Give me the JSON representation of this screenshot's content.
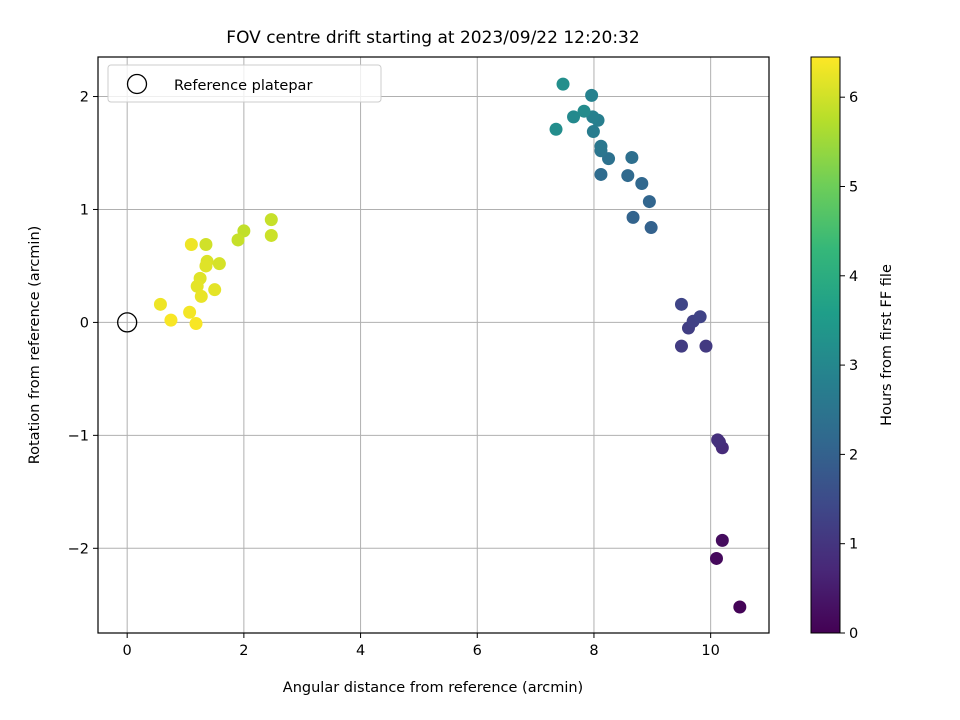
{
  "chart_data": {
    "type": "scatter",
    "title": "FOV centre drift starting at 2023/09/22 12:20:32",
    "xlabel": "Angular distance from reference (arcmin)",
    "ylabel": "Rotation from reference (arcmin)",
    "xlim": [
      -0.5,
      11.0
    ],
    "ylim": [
      -2.75,
      2.35
    ],
    "xticks": [
      0,
      2,
      4,
      6,
      8,
      10
    ],
    "yticks": [
      -2,
      -1,
      0,
      1,
      2
    ],
    "xtick_labels": [
      "0",
      "2",
      "4",
      "6",
      "8",
      "10"
    ],
    "ytick_labels": [
      "−2",
      "−1",
      "0",
      "1",
      "2"
    ],
    "grid": true,
    "legend": {
      "location": "upper-left",
      "entries": [
        "Reference platepar"
      ]
    },
    "reference_point": {
      "x": 0,
      "y": 0
    },
    "colorbar": {
      "label": "Hours from first FF file",
      "min": 0,
      "max": 6.45,
      "ticks": [
        0,
        1,
        2,
        3,
        4,
        5,
        6
      ],
      "tick_labels": [
        "0",
        "1",
        "2",
        "3",
        "4",
        "5",
        "6"
      ],
      "colormap": "viridis"
    },
    "points": [
      {
        "x": 10.5,
        "y": -2.52,
        "hours": 0.05
      },
      {
        "x": 10.1,
        "y": -2.09,
        "hours": 0.15
      },
      {
        "x": 10.2,
        "y": -1.93,
        "hours": 0.2
      },
      {
        "x": 10.2,
        "y": -1.11,
        "hours": 0.8
      },
      {
        "x": 10.15,
        "y": -1.06,
        "hours": 0.85
      },
      {
        "x": 10.12,
        "y": -1.04,
        "hours": 0.9
      },
      {
        "x": 9.92,
        "y": -0.21,
        "hours": 1.1
      },
      {
        "x": 9.5,
        "y": -0.21,
        "hours": 1.15
      },
      {
        "x": 9.62,
        "y": -0.05,
        "hours": 1.2
      },
      {
        "x": 9.7,
        "y": 0.01,
        "hours": 1.25
      },
      {
        "x": 9.82,
        "y": 0.05,
        "hours": 1.3
      },
      {
        "x": 9.5,
        "y": 0.16,
        "hours": 1.35
      },
      {
        "x": 8.98,
        "y": 0.84,
        "hours": 2.0
      },
      {
        "x": 8.67,
        "y": 0.93,
        "hours": 2.05
      },
      {
        "x": 8.95,
        "y": 1.07,
        "hours": 2.1
      },
      {
        "x": 8.82,
        "y": 1.23,
        "hours": 2.15
      },
      {
        "x": 8.58,
        "y": 1.3,
        "hours": 2.2
      },
      {
        "x": 8.12,
        "y": 1.31,
        "hours": 2.25
      },
      {
        "x": 8.65,
        "y": 1.46,
        "hours": 2.35
      },
      {
        "x": 8.25,
        "y": 1.45,
        "hours": 2.4
      },
      {
        "x": 8.12,
        "y": 1.52,
        "hours": 2.5
      },
      {
        "x": 8.12,
        "y": 1.56,
        "hours": 2.55
      },
      {
        "x": 7.99,
        "y": 1.69,
        "hours": 2.7
      },
      {
        "x": 8.07,
        "y": 1.79,
        "hours": 2.75
      },
      {
        "x": 7.98,
        "y": 1.82,
        "hours": 2.8
      },
      {
        "x": 7.96,
        "y": 2.01,
        "hours": 2.85
      },
      {
        "x": 7.65,
        "y": 1.82,
        "hours": 3.05
      },
      {
        "x": 7.83,
        "y": 1.87,
        "hours": 3.1
      },
      {
        "x": 7.35,
        "y": 1.71,
        "hours": 3.15
      },
      {
        "x": 7.47,
        "y": 2.11,
        "hours": 3.2
      },
      {
        "x": 2.47,
        "y": 0.91,
        "hours": 5.9
      },
      {
        "x": 2.47,
        "y": 0.77,
        "hours": 5.95
      },
      {
        "x": 2.0,
        "y": 0.81,
        "hours": 5.85
      },
      {
        "x": 1.9,
        "y": 0.73,
        "hours": 5.9
      },
      {
        "x": 1.35,
        "y": 0.69,
        "hours": 6.0
      },
      {
        "x": 1.1,
        "y": 0.69,
        "hours": 6.3
      },
      {
        "x": 1.58,
        "y": 0.52,
        "hours": 6.05
      },
      {
        "x": 1.37,
        "y": 0.54,
        "hours": 6.1
      },
      {
        "x": 1.35,
        "y": 0.5,
        "hours": 6.15
      },
      {
        "x": 1.25,
        "y": 0.39,
        "hours": 6.15
      },
      {
        "x": 1.2,
        "y": 0.32,
        "hours": 6.2
      },
      {
        "x": 1.5,
        "y": 0.29,
        "hours": 6.2
      },
      {
        "x": 1.27,
        "y": 0.23,
        "hours": 6.25
      },
      {
        "x": 0.57,
        "y": 0.16,
        "hours": 6.3
      },
      {
        "x": 1.07,
        "y": 0.09,
        "hours": 6.35
      },
      {
        "x": 0.75,
        "y": 0.02,
        "hours": 6.4
      },
      {
        "x": 1.18,
        "y": -0.01,
        "hours": 6.4
      }
    ]
  }
}
